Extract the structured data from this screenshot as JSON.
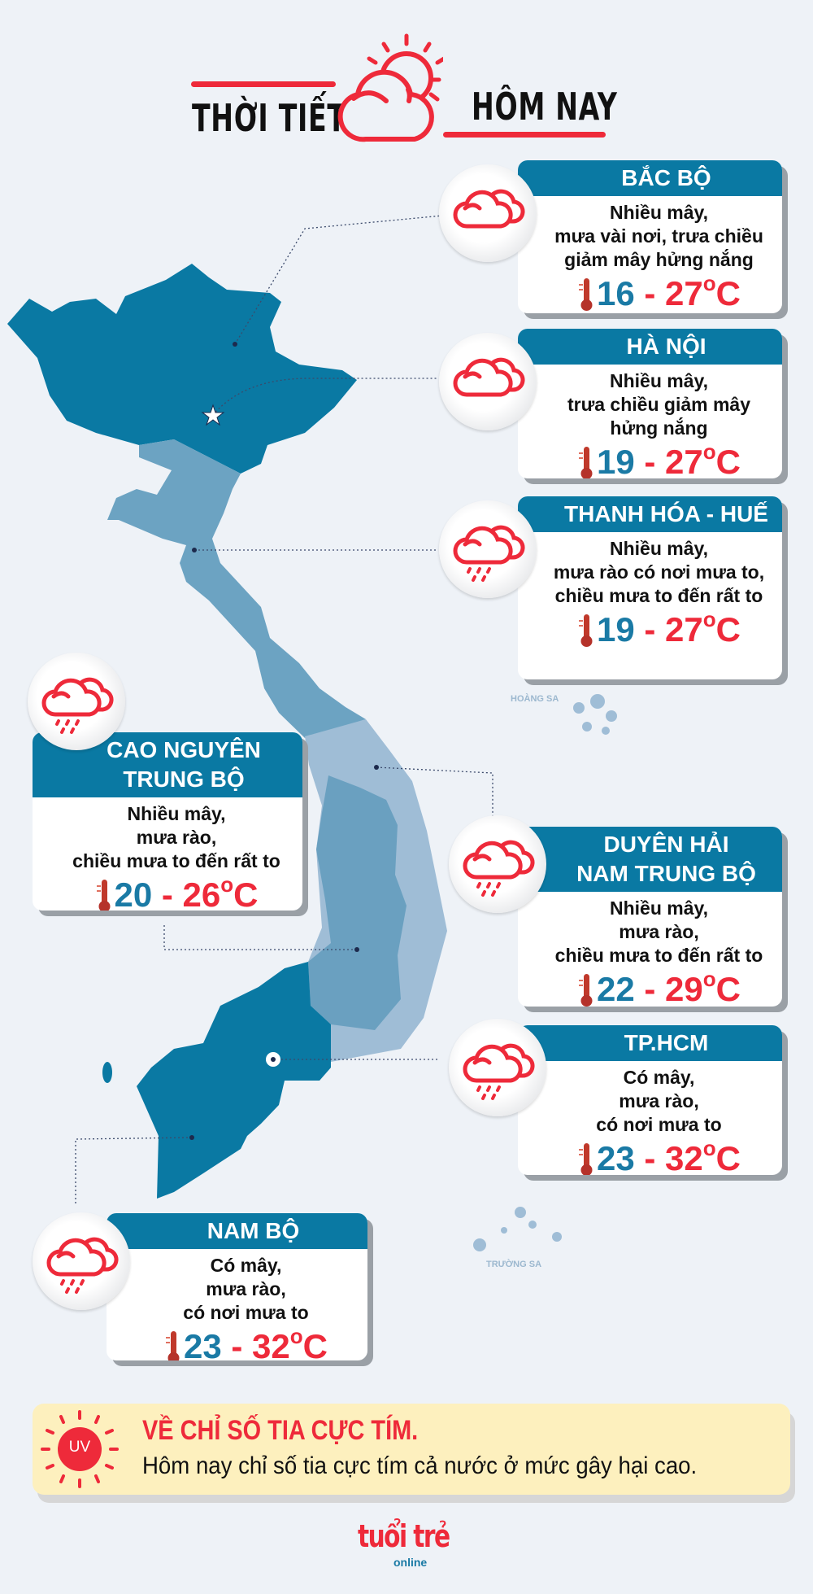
{
  "header": {
    "title_left": "THỜI TIẾT",
    "title_right": "HÔM NAY",
    "icon": "sun-cloud-icon"
  },
  "colors": {
    "accent_red": "#ee2a3a",
    "header_blue": "#0a79a3",
    "temp_low": "#1a7aa5",
    "north_south": "#0a79a3",
    "central": "#6ca3c2",
    "coastal": "#9fbdd6",
    "highlands": "#6aa0c0"
  },
  "map": {
    "islands": [
      {
        "label": "HOÀNG SA"
      },
      {
        "label": "TRƯỜNG SA"
      }
    ]
  },
  "regions": [
    {
      "name": "BẮC BỘ",
      "icon": "cloud-icon",
      "lines": [
        "Nhiều mây,",
        "mưa vài nơi, trưa chiều",
        "giảm mây hửng nắng"
      ],
      "low": "16",
      "high": "27",
      "unit": "C"
    },
    {
      "name": "HÀ NỘI",
      "icon": "cloud-icon",
      "lines": [
        "Nhiều mây,",
        "trưa chiều giảm mây",
        "hửng nắng"
      ],
      "low": "19",
      "high": "27",
      "unit": "C"
    },
    {
      "name": "THANH HÓA - HUẾ",
      "icon": "rain-cloud-icon",
      "lines": [
        "Nhiều mây,",
        "mưa rào có nơi mưa to,",
        "chiều mưa to đến rất to"
      ],
      "low": "19",
      "high": "27",
      "unit": "C"
    },
    {
      "name": "CAO NGUYÊN TRUNG BỘ",
      "name_lines": [
        "CAO NGUYÊN",
        "TRUNG BỘ"
      ],
      "icon": "rain-cloud-icon",
      "lines": [
        "Nhiều mây,",
        "mưa rào,",
        "chiều mưa to đến rất to"
      ],
      "low": "20",
      "high": "26",
      "unit": "C"
    },
    {
      "name": "DUYÊN HẢI NAM TRUNG BỘ",
      "name_lines": [
        "DUYÊN HẢI",
        "NAM TRUNG BỘ"
      ],
      "icon": "rain-cloud-icon",
      "lines": [
        "Nhiều mây,",
        "mưa rào,",
        "chiều mưa to đến rất to"
      ],
      "low": "22",
      "high": "29",
      "unit": "C"
    },
    {
      "name": "TP.HCM",
      "icon": "rain-cloud-icon",
      "lines": [
        "Có mây,",
        "mưa rào,",
        "có nơi mưa to"
      ],
      "low": "23",
      "high": "32",
      "unit": "C"
    },
    {
      "name": "NAM BỘ",
      "icon": "rain-cloud-icon",
      "lines": [
        "Có mây,",
        "mưa rào,",
        "có nơi mưa to"
      ],
      "low": "23",
      "high": "32",
      "unit": "C"
    }
  ],
  "uv": {
    "badge": "UV",
    "heading": "VỀ CHỈ SỐ TIA CỰC TÍM.",
    "text": "Hôm nay chỉ số tia cực tím cả nước ở mức gây hại cao."
  },
  "logo": {
    "text": "tuổi trẻ",
    "sub": "online"
  }
}
